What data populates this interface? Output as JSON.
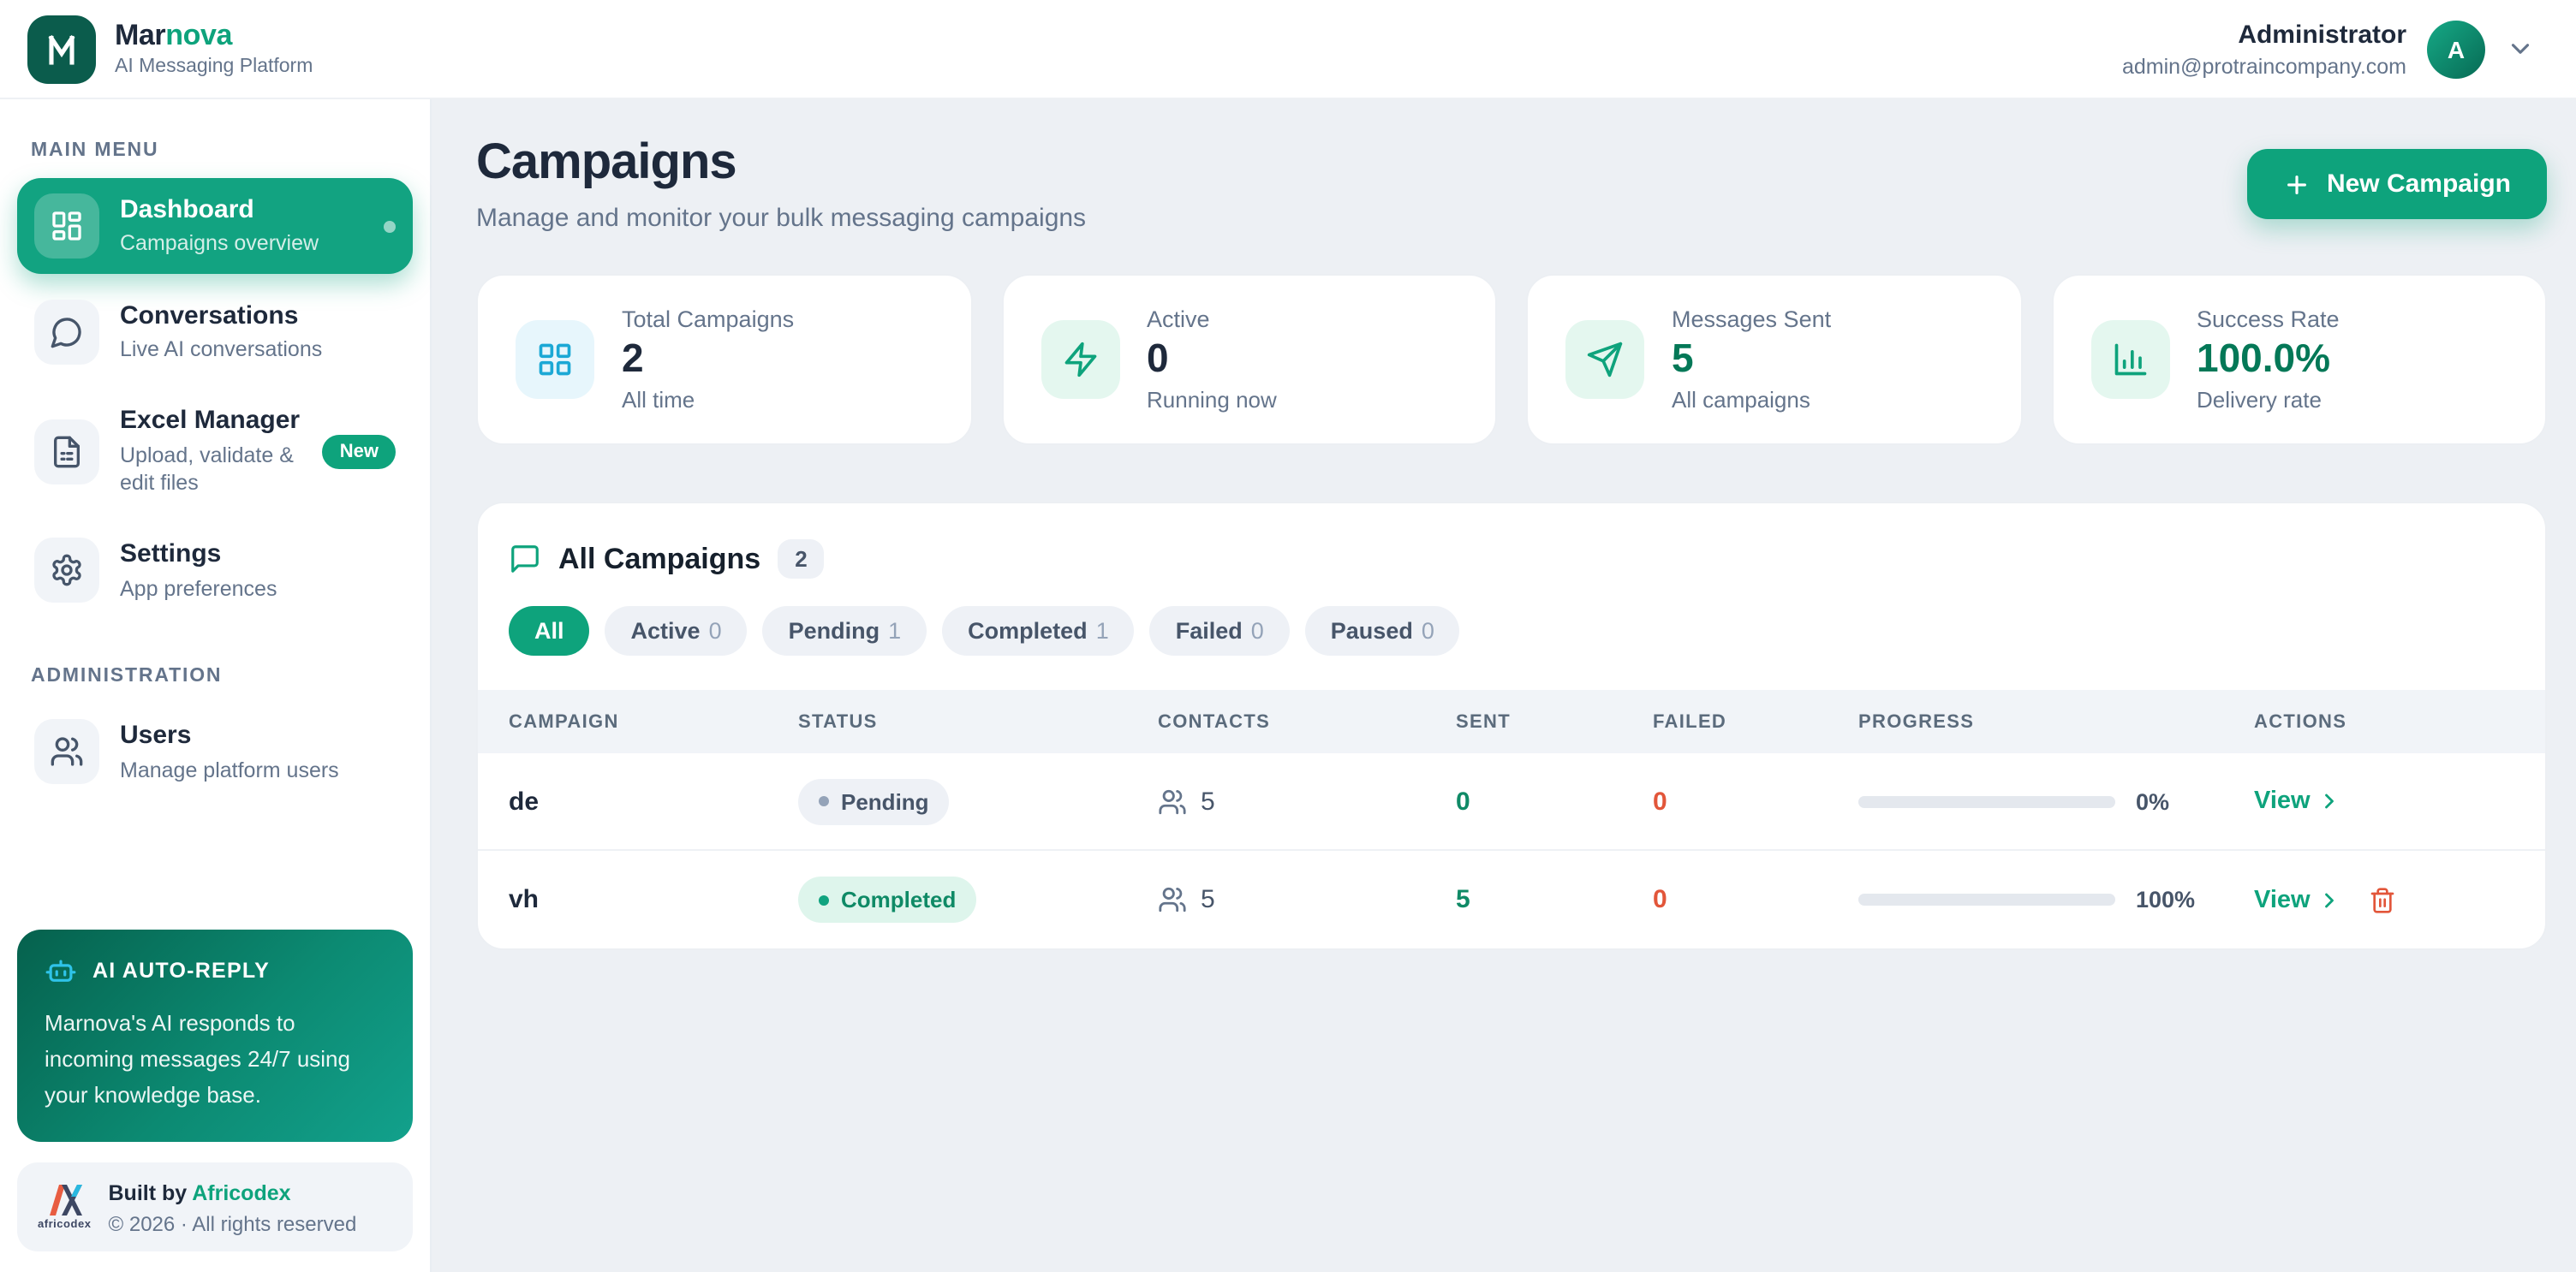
{
  "colors": {
    "primary_green": "#0ea37c",
    "active_item_green": "#12a381",
    "success_dark_green": "#047857",
    "danger_red": "#e2563a",
    "info_blue": "#1ba8d5",
    "logo_square_green": "#0b5c4c",
    "main_background": "#edf0f4"
  },
  "brand": {
    "name_prefix": "Mar",
    "name_suffix": "nova",
    "tagline": "AI Messaging Platform"
  },
  "user": {
    "name": "Administrator",
    "email": "admin@protraincompany.com",
    "avatar_initial": "A"
  },
  "sidebar": {
    "main_menu_label": "MAIN MENU",
    "admin_label": "ADMINISTRATION",
    "items": [
      {
        "label": "Dashboard",
        "description": "Campaigns overview",
        "active": true
      },
      {
        "label": "Conversations",
        "description": "Live AI conversations"
      },
      {
        "label": "Excel Manager",
        "description": "Upload, validate & edit files",
        "badge": "New"
      },
      {
        "label": "Settings",
        "description": "App preferences"
      },
      {
        "label": "Users",
        "description": "Manage platform users"
      }
    ],
    "ai_card": {
      "title": "AI AUTO-REPLY",
      "body": "Marnova's AI responds to incoming messages 24/7 using your knowledge base."
    },
    "credit": {
      "built_by": "Built by",
      "brand": "Africodex",
      "logo_text": "africodex",
      "rights": "© 2026 · All rights reserved"
    }
  },
  "page": {
    "title": "Campaigns",
    "subtitle": "Manage and monitor your bulk messaging campaigns",
    "new_campaign_label": "New Campaign"
  },
  "stats": [
    {
      "label": "Total Campaigns",
      "value": "2",
      "caption": "All time",
      "icon": "grid-icon"
    },
    {
      "label": "Active",
      "value": "0",
      "caption": "Running now",
      "icon": "lightning-icon"
    },
    {
      "label": "Messages Sent",
      "value": "5",
      "caption": "All campaigns",
      "icon": "send-icon"
    },
    {
      "label": "Success Rate",
      "value": "100.0%",
      "caption": "Delivery rate",
      "icon": "bar-chart-icon"
    }
  ],
  "panel": {
    "title": "All Campaigns",
    "count": "2",
    "filters": [
      {
        "label": "All",
        "active": true
      },
      {
        "label": "Active",
        "count": "0"
      },
      {
        "label": "Pending",
        "count": "1"
      },
      {
        "label": "Completed",
        "count": "1"
      },
      {
        "label": "Failed",
        "count": "0"
      },
      {
        "label": "Paused",
        "count": "0"
      }
    ],
    "columns": [
      "CAMPAIGN",
      "STATUS",
      "CONTACTS",
      "SENT",
      "FAILED",
      "PROGRESS",
      "ACTIONS"
    ],
    "rows": [
      {
        "name": "de",
        "status": "Pending",
        "contacts": "5",
        "sent": "0",
        "failed": "0",
        "progress_pct": 0,
        "progress_label": "0%",
        "view_label": "View"
      },
      {
        "name": "vh",
        "status": "Completed",
        "contacts": "5",
        "sent": "5",
        "failed": "0",
        "progress_pct": 100,
        "progress_label": "100%",
        "view_label": "View"
      }
    ]
  }
}
